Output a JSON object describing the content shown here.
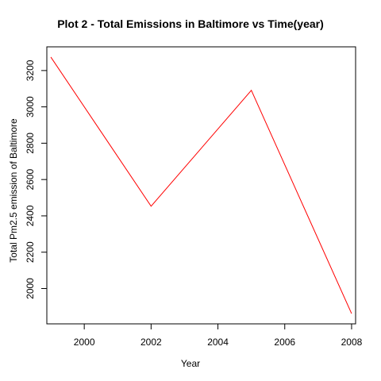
{
  "chart_data": {
    "type": "line",
    "title": "Plot 2 - Total Emissions in Baltimore vs Time(year)",
    "xlabel": "Year",
    "ylabel": "Total Pm2.5 emission of Baltimore",
    "x": [
      1999,
      2002,
      2005,
      2008
    ],
    "series": [
      {
        "values": [
          3274,
          2453,
          3091,
          1862
        ],
        "color": "#ff0000"
      }
    ],
    "xticks": [
      2000,
      2002,
      2004,
      2006,
      2008
    ],
    "yticks": [
      2000,
      2200,
      2400,
      2600,
      2800,
      3000,
      3200
    ],
    "xlim": [
      1998.88,
      2008.12
    ],
    "ylim": [
      1805.5,
      3330.5
    ],
    "grid": false,
    "line_color": "#ff0000"
  }
}
